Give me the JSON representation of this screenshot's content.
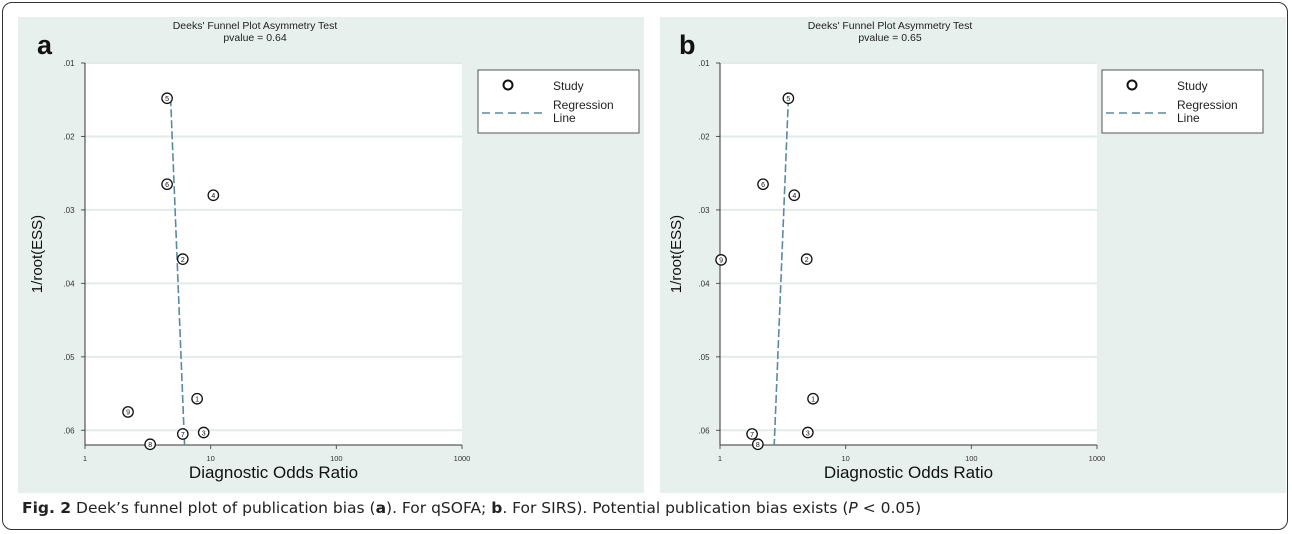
{
  "figure": {
    "caption": {
      "label": "Fig. 2",
      "t1": " Deek’s funnel plot of publication bias (",
      "a": "a",
      "t2": "). For qSOFA; ",
      "b": "b",
      "t3": ". For SIRS). Potential publication bias exists (",
      "p": "P",
      "t4": " < 0.05)"
    }
  },
  "chart_data": [
    {
      "type": "scatter",
      "panel_label": "a",
      "title": "Deeks' Funnel Plot Asymmetry Test",
      "subtitle": "pvalue =  0.64",
      "xlabel": "Diagnostic Odds Ratio",
      "ylabel": "1/root(ESS)",
      "x_scale": "log",
      "xlim": [
        1,
        1000
      ],
      "x_ticks": [
        "1",
        "10",
        "100",
        "1000"
      ],
      "ylim": [
        0.01,
        0.062
      ],
      "y_reversed": true,
      "y_ticks": [
        ".01",
        ".02",
        ".03",
        ".04",
        ".05",
        ".06"
      ],
      "grid": "horizontal",
      "legend": {
        "position": "right",
        "study": "Study",
        "regression": [
          "Regression",
          "Line"
        ]
      },
      "series": [
        {
          "name": "Study",
          "points": [
            {
              "label": "5",
              "x": 4.5,
              "y": 0.0148
            },
            {
              "label": "6",
              "x": 4.5,
              "y": 0.0265
            },
            {
              "label": "4",
              "x": 10.5,
              "y": 0.028
            },
            {
              "label": "2",
              "x": 6.0,
              "y": 0.0367
            },
            {
              "label": "1",
              "x": 7.8,
              "y": 0.0557
            },
            {
              "label": "9",
              "x": 2.2,
              "y": 0.0575
            },
            {
              "label": "7",
              "x": 6.0,
              "y": 0.0605
            },
            {
              "label": "3",
              "x": 8.8,
              "y": 0.0603
            },
            {
              "label": "8",
              "x": 3.3,
              "y": 0.0619
            }
          ]
        },
        {
          "name": "Regression Line",
          "line": [
            {
              "x": 4.8,
              "y": 0.0148
            },
            {
              "x": 6.2,
              "y": 0.062
            }
          ],
          "color": "#5a8aa0"
        }
      ]
    },
    {
      "type": "scatter",
      "panel_label": "b",
      "title": "Deeks' Funnel Plot Asymmetry Test",
      "subtitle": "pvalue =  0.65",
      "xlabel": "Diagnostic Odds Ratio",
      "ylabel": "1/root(ESS)",
      "x_scale": "log",
      "xlim": [
        1,
        1000
      ],
      "x_ticks": [
        "1",
        "10",
        "100",
        "1000"
      ],
      "ylim": [
        0.01,
        0.062
      ],
      "y_reversed": true,
      "y_ticks": [
        ".01",
        ".02",
        ".03",
        ".04",
        ".05",
        ".06"
      ],
      "grid": "horizontal",
      "legend": {
        "position": "right",
        "study": "Study",
        "regression": [
          "Regression",
          "Line"
        ]
      },
      "series": [
        {
          "name": "Study",
          "points": [
            {
              "label": "5",
              "x": 3.5,
              "y": 0.0148
            },
            {
              "label": "6",
              "x": 2.2,
              "y": 0.0265
            },
            {
              "label": "4",
              "x": 3.9,
              "y": 0.028
            },
            {
              "label": "9",
              "x": 1.02,
              "y": 0.0368
            },
            {
              "label": "2",
              "x": 4.9,
              "y": 0.0367
            },
            {
              "label": "1",
              "x": 5.5,
              "y": 0.0557
            },
            {
              "label": "7",
              "x": 1.8,
              "y": 0.0605
            },
            {
              "label": "3",
              "x": 5.0,
              "y": 0.0603
            },
            {
              "label": "8",
              "x": 2.0,
              "y": 0.0619
            }
          ]
        },
        {
          "name": "Regression Line",
          "line": [
            {
              "x": 3.5,
              "y": 0.0148
            },
            {
              "x": 2.7,
              "y": 0.062
            }
          ],
          "color": "#5a8aa0"
        }
      ]
    }
  ]
}
